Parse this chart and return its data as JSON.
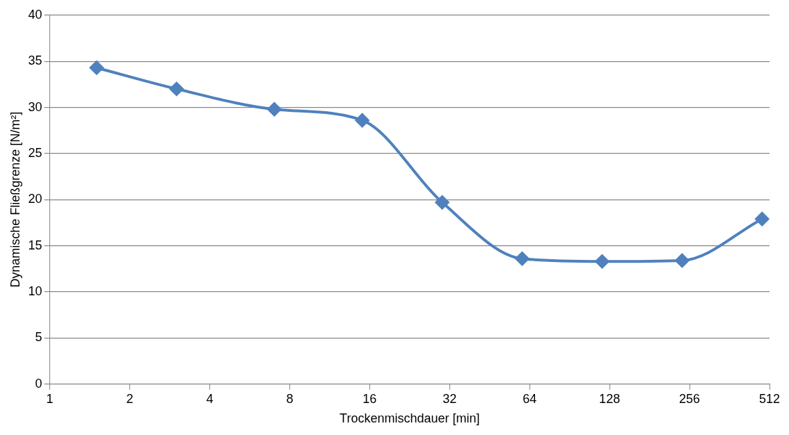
{
  "chart_data": {
    "type": "line",
    "xlabel": "Trockenmischdauer [min]",
    "ylabel": "Dynamische Fließgrenze [N/m²]",
    "x": [
      1.5,
      3,
      7,
      15,
      30,
      60,
      120,
      240,
      480
    ],
    "series": [
      {
        "color": "#4f81bd",
        "values": [
          34.3,
          32.0,
          29.8,
          28.6,
          19.7,
          13.6,
          13.3,
          13.4,
          17.9
        ]
      }
    ],
    "log": "x",
    "xlim": [
      1,
      512
    ],
    "xticks": [
      1,
      2,
      4,
      8,
      16,
      32,
      64,
      128,
      256,
      512
    ],
    "ylim": [
      0,
      40
    ],
    "yticks": [
      0,
      5,
      10,
      15,
      20,
      25,
      30,
      35,
      40
    ],
    "grid": "y",
    "legend": false,
    "marker": "diamond",
    "line_style": "solid"
  }
}
